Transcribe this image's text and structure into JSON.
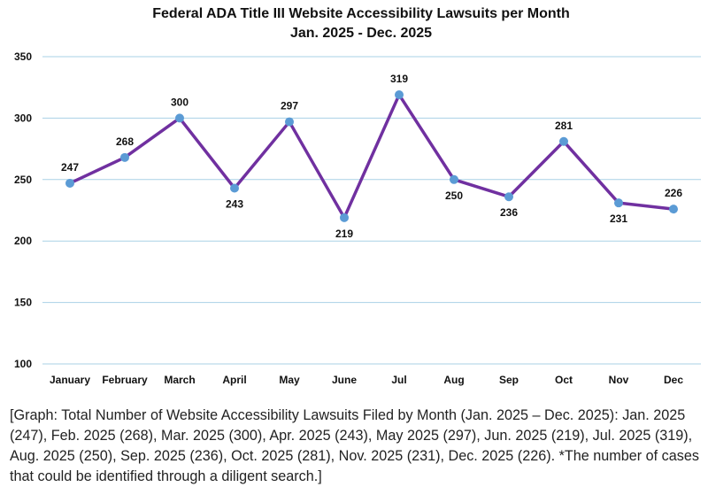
{
  "chart_data": {
    "type": "line",
    "title": "Federal ADA Title III Website Accessibility Lawsuits per Month",
    "subtitle": "Jan. 2025 - Dec. 2025",
    "xlabel": "",
    "ylabel": "",
    "categories": [
      "January",
      "February",
      "March",
      "April",
      "May",
      "June",
      "Jul",
      "Aug",
      "Sep",
      "Oct",
      "Nov",
      "Dec"
    ],
    "series": [
      {
        "values": [
          247,
          268,
          300,
          243,
          297,
          219,
          319,
          250,
          236,
          281,
          231,
          226
        ],
        "color": "#7030a0",
        "marker_color": "#5b9bd5"
      }
    ],
    "data_label_position": [
      "above",
      "above",
      "above",
      "below",
      "above",
      "below",
      "above",
      "below",
      "below",
      "above",
      "below",
      "above"
    ],
    "ylim": [
      100,
      350
    ],
    "yticks": [
      100,
      150,
      200,
      250,
      300,
      350
    ],
    "grid": true,
    "legend": "none"
  },
  "caption": "[Graph: Total Number of Website Accessibility Lawsuits Filed by Month (Jan. 2025 – Dec. 2025): Jan. 2025 (247), Feb. 2025 (268), Mar. 2025 (300), Apr. 2025 (243), May 2025 (297), Jun. 2025 (219), Jul. 2025 (319), Aug. 2025 (250), Sep. 2025 (236), Oct. 2025 (281), Nov. 2025 (231), Dec. 2025 (226). *The number of cases that could be identified through a diligent search.]"
}
